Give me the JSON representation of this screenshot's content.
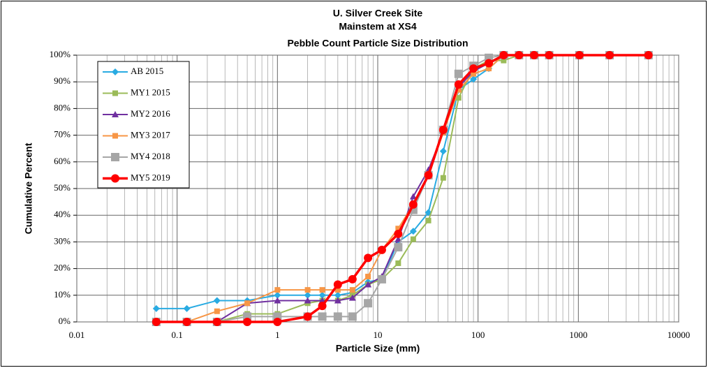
{
  "chart_data": {
    "type": "line",
    "title": [
      "U. Silver Creek Site",
      "Mainstem at XS4",
      "Pebble Count Particle Size Distribution"
    ],
    "x_label": "Particle Size (mm)",
    "y_label": "Cumulative Percent",
    "x_log": true,
    "grid": true,
    "minor_grid": true,
    "legend": "upper left",
    "x": [
      0.062,
      0.125,
      0.25,
      0.5,
      1,
      2,
      2.8,
      4,
      5.6,
      8,
      11,
      16,
      22.6,
      32,
      45,
      64,
      90,
      128,
      180,
      256,
      362,
      512,
      1024,
      2048,
      5000
    ],
    "xlim": [
      0.01,
      10000
    ],
    "xticks": [
      0.01,
      0.1,
      1,
      10,
      100,
      1000,
      10000
    ],
    "ylim": [
      0,
      100
    ],
    "yticks": [
      {
        "value": 0,
        "label": "0%"
      },
      {
        "value": 10,
        "label": "10%"
      },
      {
        "value": 20,
        "label": "20%"
      },
      {
        "value": 30,
        "label": "30%"
      },
      {
        "value": 40,
        "label": "40%"
      },
      {
        "value": 50,
        "label": "50%"
      },
      {
        "value": 60,
        "label": "60%"
      },
      {
        "value": 70,
        "label": "70%"
      },
      {
        "value": 80,
        "label": "80%"
      },
      {
        "value": 90,
        "label": "90%"
      },
      {
        "value": 100,
        "label": "100%"
      }
    ],
    "series": [
      {
        "name": "AB 2015",
        "color": "#29abe2",
        "marker": "diamond",
        "values": [
          5,
          5,
          8,
          8,
          10,
          10,
          10,
          10,
          11,
          15,
          16,
          30,
          34,
          41,
          64,
          87,
          91,
          95,
          100,
          100,
          100,
          100,
          100,
          100,
          100
        ]
      },
      {
        "name": "MY1 2015",
        "color": "#9bbb59",
        "marker": "square",
        "values": [
          0,
          0,
          0,
          3,
          3,
          7,
          8,
          8,
          10,
          14,
          16,
          22,
          31,
          38,
          54,
          84,
          95,
          98,
          98,
          100,
          100,
          100,
          100,
          100,
          100
        ]
      },
      {
        "name": "MY2 2016",
        "color": "#7030a0",
        "marker": "triangle",
        "values": [
          0,
          0,
          0,
          7,
          8,
          8,
          8,
          8,
          9,
          14,
          17,
          31,
          47,
          57,
          71,
          88,
          94,
          97,
          100,
          100,
          100,
          100,
          100,
          100,
          100
        ]
      },
      {
        "name": "MY3 2017",
        "color": "#f79646",
        "marker": "square",
        "values": [
          0,
          0,
          4,
          7,
          12,
          12,
          12,
          12,
          12,
          17,
          27,
          35,
          44,
          55,
          71,
          87,
          93,
          95,
          100,
          100,
          100,
          100,
          100,
          100,
          100
        ]
      },
      {
        "name": "MY4 2018",
        "color": "#a6a6a6",
        "marker": "bigsquare",
        "values": [
          0,
          0,
          0,
          2,
          2,
          2,
          2,
          2,
          2,
          7,
          16,
          28,
          42,
          55,
          72,
          93,
          96,
          99,
          100,
          100,
          100,
          100,
          100,
          100,
          100
        ]
      },
      {
        "name": "MY5 2019",
        "color": "#ff0000",
        "marker": "circle",
        "values": [
          0,
          0,
          0,
          0,
          0,
          2,
          6,
          14,
          16,
          24,
          27,
          33,
          44,
          55,
          72,
          89,
          95,
          97,
          100,
          100,
          100,
          100,
          100,
          100,
          100
        ]
      }
    ]
  }
}
